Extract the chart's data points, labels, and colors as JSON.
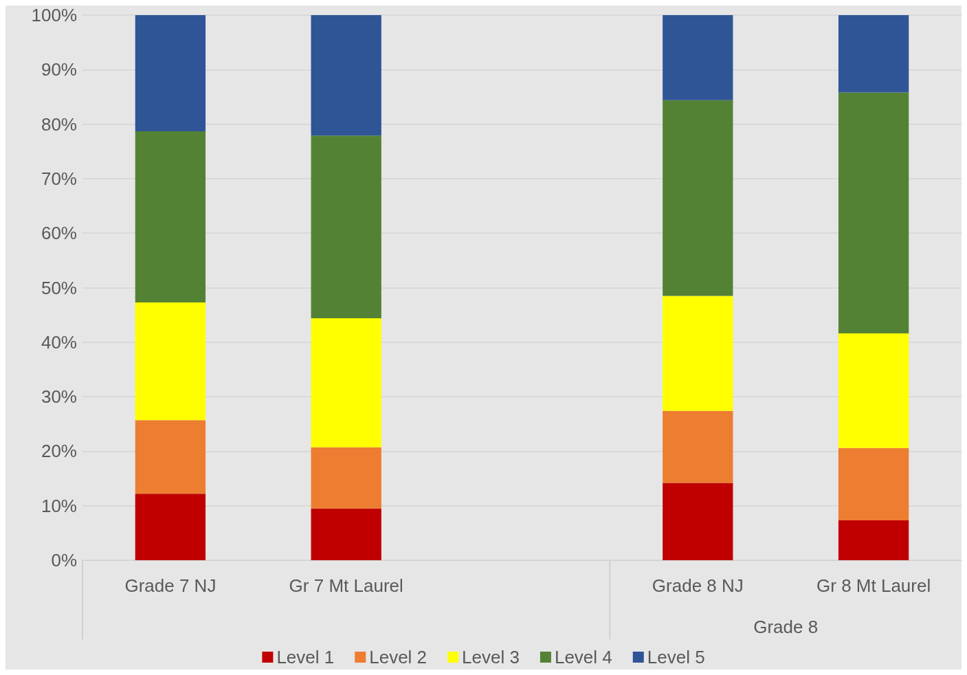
{
  "chart_data": {
    "type": "bar",
    "stacked": true,
    "categories": [
      "Grade 7 NJ",
      "Gr 7 Mt Laurel",
      null,
      "Grade 8 NJ",
      "Gr 8 Mt Laurel"
    ],
    "series": [
      {
        "name": "Level 1",
        "color": "#c00000",
        "values": [
          12.2,
          9.5,
          null,
          14.2,
          7.3
        ]
      },
      {
        "name": "Level 2",
        "color": "#ed7d31",
        "values": [
          13.5,
          11.2,
          null,
          13.2,
          13.3
        ]
      },
      {
        "name": "Level 3",
        "color": "#ffff00",
        "values": [
          21.6,
          23.7,
          null,
          21.1,
          21.0
        ]
      },
      {
        "name": "Level 4",
        "color": "#548235",
        "values": [
          31.4,
          33.5,
          null,
          35.9,
          44.2
        ]
      },
      {
        "name": "Level 5",
        "color": "#2f5597",
        "values": [
          21.3,
          22.1,
          null,
          15.6,
          14.2
        ]
      }
    ],
    "ylim": [
      0,
      100
    ],
    "yticks": [
      {
        "value": 0,
        "label": "0%"
      },
      {
        "value": 10,
        "label": "10%"
      },
      {
        "value": 20,
        "label": "20%"
      },
      {
        "value": 30,
        "label": "30%"
      },
      {
        "value": 40,
        "label": "40%"
      },
      {
        "value": 50,
        "label": "50%"
      },
      {
        "value": 60,
        "label": "60%"
      },
      {
        "value": 70,
        "label": "70%"
      },
      {
        "value": 80,
        "label": "80%"
      },
      {
        "value": 90,
        "label": "90%"
      },
      {
        "value": 100,
        "label": "100%"
      }
    ],
    "grid": "y",
    "legend": "bottom",
    "annotations": [
      "Grade 8"
    ]
  }
}
